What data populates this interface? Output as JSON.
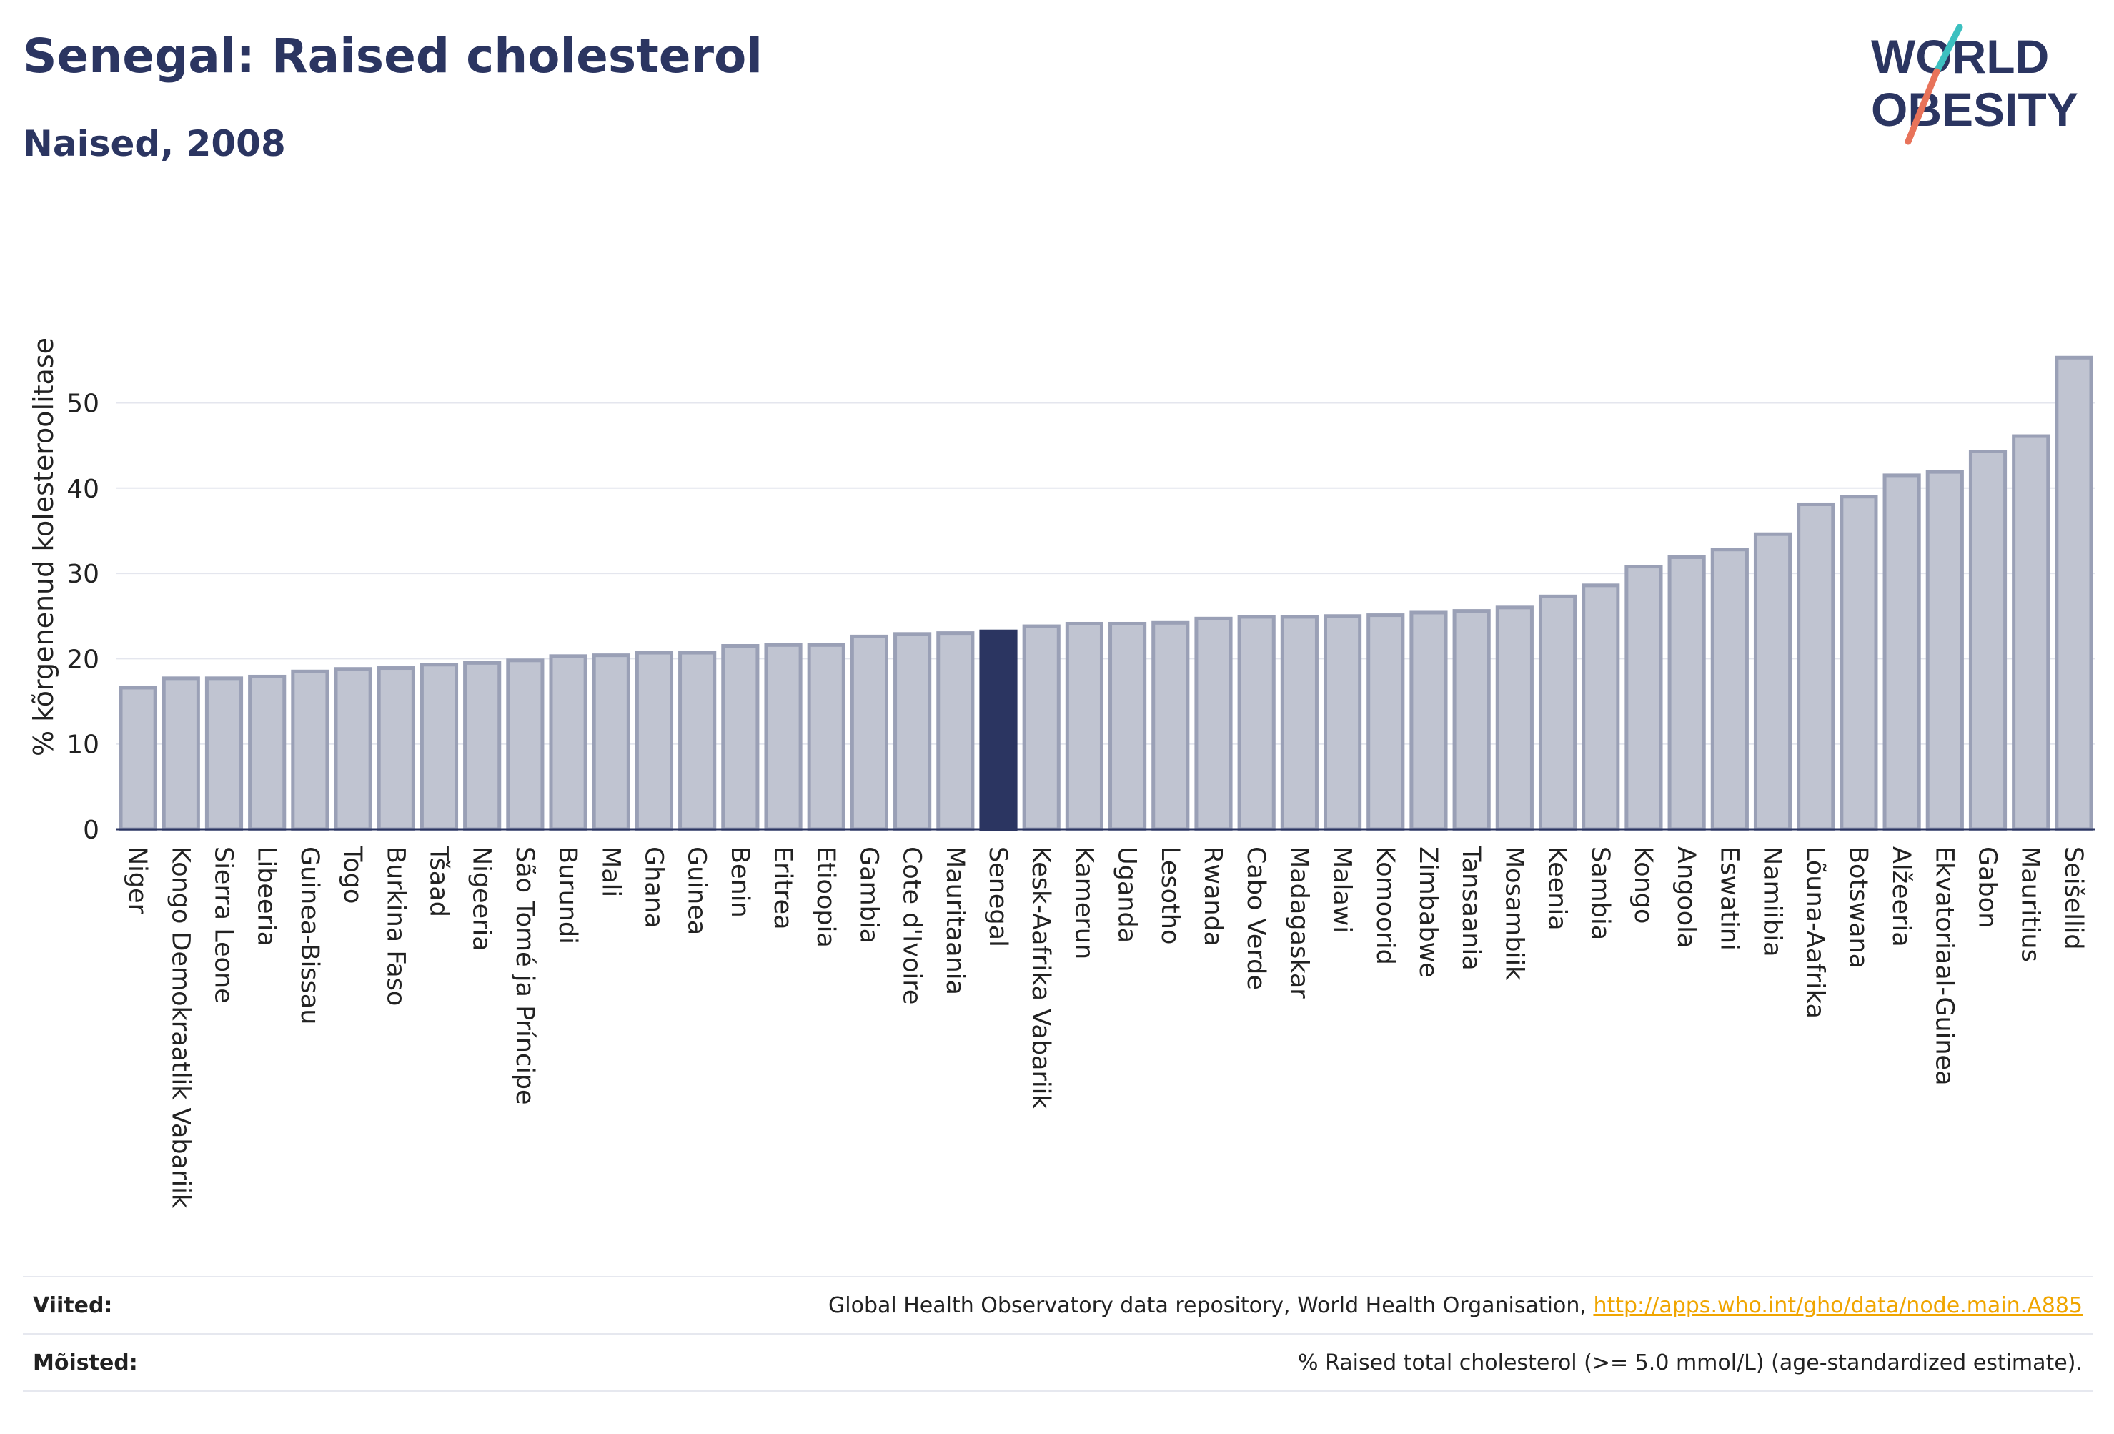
{
  "header": {
    "title": "Senegal: Raised cholesterol",
    "subtitle": "Naised, 2008"
  },
  "logo": {
    "line1": "WORLD",
    "line2": "OBESITY",
    "colors": [
      "#2b3561",
      "#e8735a",
      "#3cc0c0"
    ]
  },
  "chart_data": {
    "type": "bar",
    "title": "Senegal: Raised cholesterol",
    "subtitle": "Naised, 2008",
    "xlabel": "",
    "ylabel": "% kõrgenenud kolesteroolitase",
    "ylim": [
      0,
      57
    ],
    "yticks": [
      0,
      10,
      20,
      30,
      40,
      50
    ],
    "grid": true,
    "highlight": "Senegal",
    "colors": {
      "bar": "#c0c4d1",
      "bar_edge": "#9aa0b6",
      "highlight": "#2b3561",
      "axis": "#2b3561"
    },
    "categories": [
      "Niger",
      "Kongo Demokraatlik Vabariik",
      "Sierra Leone",
      "Libeeria",
      "Guinea-Bissau",
      "Togo",
      "Burkina Faso",
      "Tšaad",
      "Nigeeria",
      "São Tomé ja Príncipe",
      "Burundi",
      "Mali",
      "Ghana",
      "Guinea",
      "Benin",
      "Eritrea",
      "Etioopia",
      "Gambia",
      "Cote d'Ivoire",
      "Mauritaania",
      "Senegal",
      "Kesk-Aafrika Vabariik",
      "Kamerun",
      "Uganda",
      "Lesotho",
      "Rwanda",
      "Cabo Verde",
      "Madagaskar",
      "Malawi",
      "Komoorid",
      "Zimbabwe",
      "Tansaania",
      "Mosambiik",
      "Keenia",
      "Sambia",
      "Kongo",
      "Angoola",
      "Eswatini",
      "Namiibia",
      "Lõuna-Aafrika",
      "Botswana",
      "Alžeeria",
      "Ekvatoriaal-Guinea",
      "Gabon",
      "Mauritius",
      "Seišellid"
    ],
    "values": [
      16.6,
      17.7,
      17.7,
      17.9,
      18.5,
      18.8,
      18.9,
      19.3,
      19.5,
      19.8,
      20.3,
      20.4,
      20.7,
      20.7,
      21.5,
      21.6,
      21.6,
      22.6,
      22.9,
      23.0,
      23.2,
      23.8,
      24.1,
      24.1,
      24.2,
      24.7,
      24.9,
      24.9,
      25.0,
      25.1,
      25.4,
      25.6,
      26.0,
      27.3,
      28.6,
      30.8,
      31.9,
      32.8,
      34.6,
      38.1,
      39.0,
      41.5,
      41.9,
      44.3,
      46.1,
      55.3
    ]
  },
  "footer": {
    "sources_label": "Viited:",
    "sources_text": "Global Health Observatory data repository, World Health Organisation, ",
    "sources_link": "http://apps.who.int/gho/data/node.main.A885",
    "definitions_label": "Mõisted:",
    "definitions_text": "% Raised total cholesterol (>= 5.0 mmol/L) (age-standardized estimate)."
  }
}
